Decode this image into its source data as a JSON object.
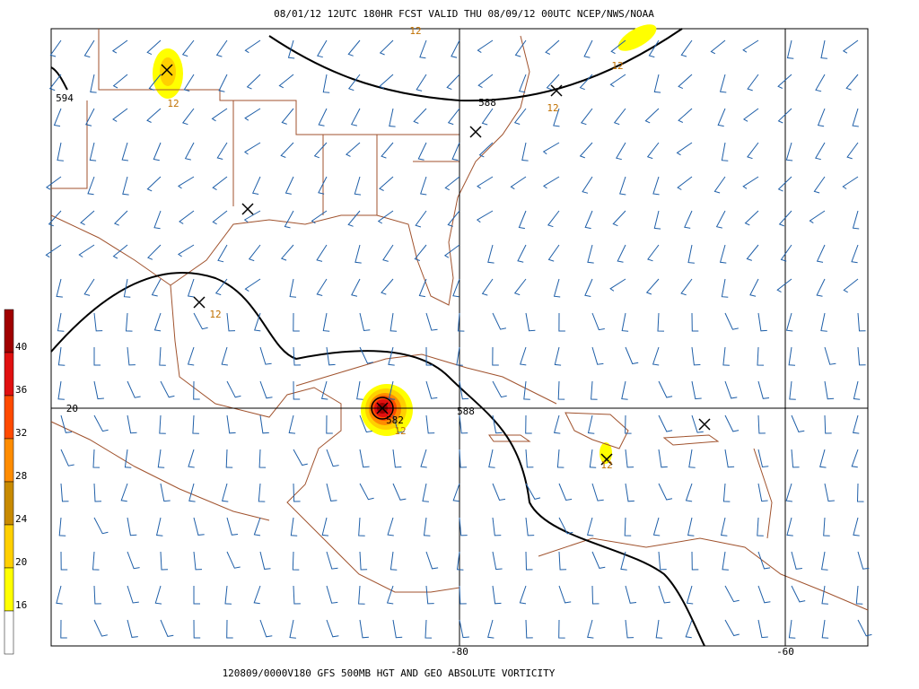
{
  "header": "08/01/12 12UTC  180HR  FCST VALID THU 08/09/12 00UTC  NCEP/NWS/NOAA",
  "footer": "120809/0000V180 GFS 500MB HGT AND GEO ABSOLUTE VORTICITY",
  "grid_labels": [
    "20",
    "-80",
    "-60"
  ],
  "contour_labels": [
    "594",
    "588",
    "588",
    "582",
    "12",
    "12",
    "12",
    "12",
    "12",
    "12",
    "12"
  ],
  "colorbar": {
    "labels": [
      "40",
      "36",
      "32",
      "28",
      "24",
      "20",
      "16"
    ],
    "colors": [
      "#a00000",
      "#e01010",
      "#ff4a00",
      "#ff8c00",
      "#c88a00",
      "#ffd000",
      "#ffff00",
      "#ffffff"
    ]
  }
}
